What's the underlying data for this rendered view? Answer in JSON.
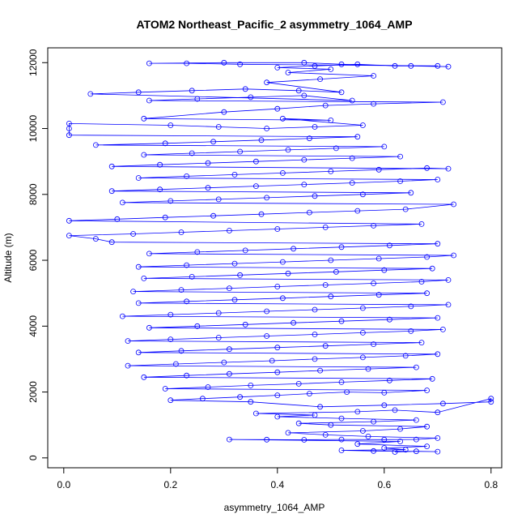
{
  "chart_data": {
    "type": "scatter",
    "title": "ATOM2 Northeast_Pacific_2 asymmetry_1064_AMP",
    "xlabel": "asymmetry_1064_AMP",
    "ylabel": "Altitude (m)",
    "xlim": [
      -0.03,
      0.82
    ],
    "ylim": [
      -300,
      12450
    ],
    "x_ticks": [
      {
        "value": 0.0,
        "label": "0.0"
      },
      {
        "value": 0.2,
        "label": "0.2"
      },
      {
        "value": 0.4,
        "label": "0.4"
      },
      {
        "value": 0.6,
        "label": "0.6"
      },
      {
        "value": 0.8,
        "label": "0.8"
      }
    ],
    "y_ticks": [
      {
        "value": 0,
        "label": "0"
      },
      {
        "value": 2000,
        "label": "2000"
      },
      {
        "value": 4000,
        "label": "4000"
      },
      {
        "value": 6000,
        "label": "6000"
      },
      {
        "value": 8000,
        "label": "8000"
      },
      {
        "value": 10000,
        "label": "10000"
      },
      {
        "value": 12000,
        "label": "12000"
      }
    ],
    "grid": false,
    "legend": "none",
    "series": [
      {
        "color": "#0000ff",
        "marker": "open-circle",
        "connected": true,
        "points": [
          [
            0.62,
            180
          ],
          [
            0.66,
            200
          ],
          [
            0.7,
            190
          ],
          [
            0.58,
            210
          ],
          [
            0.52,
            230
          ],
          [
            0.64,
            250
          ],
          [
            0.6,
            300
          ],
          [
            0.68,
            350
          ],
          [
            0.55,
            420
          ],
          [
            0.63,
            500
          ],
          [
            0.31,
            560
          ],
          [
            0.38,
            555
          ],
          [
            0.45,
            550
          ],
          [
            0.52,
            560
          ],
          [
            0.6,
            555
          ],
          [
            0.66,
            560
          ],
          [
            0.7,
            600
          ],
          [
            0.57,
            650
          ],
          [
            0.49,
            700
          ],
          [
            0.42,
            760
          ],
          [
            0.56,
            820
          ],
          [
            0.63,
            880
          ],
          [
            0.68,
            950
          ],
          [
            0.5,
            1000
          ],
          [
            0.44,
            1050
          ],
          [
            0.58,
            1100
          ],
          [
            0.66,
            1150
          ],
          [
            0.52,
            1200
          ],
          [
            0.4,
            1250
          ],
          [
            0.47,
            1300
          ],
          [
            0.36,
            1350
          ],
          [
            0.55,
            1400
          ],
          [
            0.62,
            1450
          ],
          [
            0.7,
            1380
          ],
          [
            0.8,
            1800
          ],
          [
            0.8,
            1700
          ],
          [
            0.71,
            1650
          ],
          [
            0.6,
            1600
          ],
          [
            0.48,
            1550
          ],
          [
            0.35,
            1700
          ],
          [
            0.2,
            1750
          ],
          [
            0.26,
            1800
          ],
          [
            0.33,
            1850
          ],
          [
            0.4,
            1900
          ],
          [
            0.46,
            1950
          ],
          [
            0.53,
            2000
          ],
          [
            0.6,
            1980
          ],
          [
            0.68,
            2050
          ],
          [
            0.19,
            2100
          ],
          [
            0.27,
            2150
          ],
          [
            0.35,
            2200
          ],
          [
            0.44,
            2250
          ],
          [
            0.52,
            2300
          ],
          [
            0.61,
            2350
          ],
          [
            0.69,
            2400
          ],
          [
            0.15,
            2450
          ],
          [
            0.23,
            2500
          ],
          [
            0.31,
            2550
          ],
          [
            0.4,
            2600
          ],
          [
            0.48,
            2650
          ],
          [
            0.57,
            2700
          ],
          [
            0.66,
            2750
          ],
          [
            0.12,
            2800
          ],
          [
            0.21,
            2850
          ],
          [
            0.3,
            2900
          ],
          [
            0.39,
            2950
          ],
          [
            0.47,
            3000
          ],
          [
            0.56,
            3050
          ],
          [
            0.64,
            3100
          ],
          [
            0.7,
            3150
          ],
          [
            0.14,
            3200
          ],
          [
            0.22,
            3250
          ],
          [
            0.31,
            3300
          ],
          [
            0.4,
            3350
          ],
          [
            0.49,
            3400
          ],
          [
            0.58,
            3450
          ],
          [
            0.67,
            3500
          ],
          [
            0.12,
            3550
          ],
          [
            0.2,
            3600
          ],
          [
            0.29,
            3650
          ],
          [
            0.38,
            3700
          ],
          [
            0.47,
            3750
          ],
          [
            0.56,
            3800
          ],
          [
            0.65,
            3850
          ],
          [
            0.71,
            3900
          ],
          [
            0.16,
            3950
          ],
          [
            0.25,
            4000
          ],
          [
            0.34,
            4050
          ],
          [
            0.43,
            4100
          ],
          [
            0.52,
            4150
          ],
          [
            0.61,
            4200
          ],
          [
            0.7,
            4250
          ],
          [
            0.11,
            4300
          ],
          [
            0.2,
            4350
          ],
          [
            0.29,
            4400
          ],
          [
            0.38,
            4450
          ],
          [
            0.47,
            4500
          ],
          [
            0.56,
            4550
          ],
          [
            0.65,
            4600
          ],
          [
            0.72,
            4650
          ],
          [
            0.14,
            4700
          ],
          [
            0.23,
            4750
          ],
          [
            0.32,
            4800
          ],
          [
            0.41,
            4850
          ],
          [
            0.5,
            4900
          ],
          [
            0.59,
            4950
          ],
          [
            0.68,
            5000
          ],
          [
            0.13,
            5050
          ],
          [
            0.22,
            5100
          ],
          [
            0.31,
            5150
          ],
          [
            0.4,
            5200
          ],
          [
            0.49,
            5250
          ],
          [
            0.58,
            5300
          ],
          [
            0.67,
            5350
          ],
          [
            0.72,
            5400
          ],
          [
            0.15,
            5450
          ],
          [
            0.24,
            5500
          ],
          [
            0.33,
            5550
          ],
          [
            0.42,
            5600
          ],
          [
            0.51,
            5650
          ],
          [
            0.6,
            5700
          ],
          [
            0.69,
            5750
          ],
          [
            0.14,
            5800
          ],
          [
            0.23,
            5850
          ],
          [
            0.32,
            5900
          ],
          [
            0.41,
            5950
          ],
          [
            0.5,
            6000
          ],
          [
            0.59,
            6050
          ],
          [
            0.68,
            6100
          ],
          [
            0.73,
            6150
          ],
          [
            0.16,
            6200
          ],
          [
            0.25,
            6250
          ],
          [
            0.34,
            6300
          ],
          [
            0.43,
            6350
          ],
          [
            0.52,
            6400
          ],
          [
            0.61,
            6450
          ],
          [
            0.7,
            6500
          ],
          [
            0.09,
            6550
          ],
          [
            0.06,
            6650
          ],
          [
            0.01,
            6750
          ],
          [
            0.13,
            6800
          ],
          [
            0.22,
            6850
          ],
          [
            0.31,
            6900
          ],
          [
            0.4,
            6950
          ],
          [
            0.49,
            7000
          ],
          [
            0.58,
            7050
          ],
          [
            0.67,
            7100
          ],
          [
            0.01,
            7200
          ],
          [
            0.1,
            7250
          ],
          [
            0.19,
            7300
          ],
          [
            0.28,
            7350
          ],
          [
            0.37,
            7400
          ],
          [
            0.46,
            7450
          ],
          [
            0.55,
            7500
          ],
          [
            0.64,
            7550
          ],
          [
            0.73,
            7700
          ],
          [
            0.11,
            7750
          ],
          [
            0.2,
            7800
          ],
          [
            0.29,
            7850
          ],
          [
            0.38,
            7900
          ],
          [
            0.47,
            7950
          ],
          [
            0.56,
            8000
          ],
          [
            0.65,
            8050
          ],
          [
            0.09,
            8100
          ],
          [
            0.18,
            8150
          ],
          [
            0.27,
            8200
          ],
          [
            0.36,
            8250
          ],
          [
            0.45,
            8300
          ],
          [
            0.54,
            8350
          ],
          [
            0.63,
            8400
          ],
          [
            0.7,
            8450
          ],
          [
            0.14,
            8500
          ],
          [
            0.23,
            8550
          ],
          [
            0.32,
            8600
          ],
          [
            0.41,
            8650
          ],
          [
            0.5,
            8700
          ],
          [
            0.59,
            8750
          ],
          [
            0.68,
            8800
          ],
          [
            0.72,
            8780
          ],
          [
            0.09,
            8850
          ],
          [
            0.18,
            8900
          ],
          [
            0.27,
            8950
          ],
          [
            0.36,
            9000
          ],
          [
            0.45,
            9050
          ],
          [
            0.54,
            9100
          ],
          [
            0.63,
            9150
          ],
          [
            0.15,
            9200
          ],
          [
            0.24,
            9250
          ],
          [
            0.33,
            9300
          ],
          [
            0.42,
            9350
          ],
          [
            0.51,
            9400
          ],
          [
            0.6,
            9450
          ],
          [
            0.06,
            9500
          ],
          [
            0.19,
            9550
          ],
          [
            0.28,
            9600
          ],
          [
            0.37,
            9650
          ],
          [
            0.46,
            9700
          ],
          [
            0.55,
            9750
          ],
          [
            0.01,
            9800
          ],
          [
            0.01,
            10000
          ],
          [
            0.01,
            10150
          ],
          [
            0.2,
            10100
          ],
          [
            0.29,
            10050
          ],
          [
            0.38,
            10000
          ],
          [
            0.47,
            10050
          ],
          [
            0.56,
            10100
          ],
          [
            0.41,
            10300
          ],
          [
            0.5,
            10250
          ],
          [
            0.15,
            10300
          ],
          [
            0.3,
            10500
          ],
          [
            0.4,
            10600
          ],
          [
            0.49,
            10700
          ],
          [
            0.58,
            10750
          ],
          [
            0.71,
            10800
          ],
          [
            0.16,
            10850
          ],
          [
            0.25,
            10900
          ],
          [
            0.35,
            10950
          ],
          [
            0.45,
            11000
          ],
          [
            0.54,
            10850
          ],
          [
            0.05,
            11050
          ],
          [
            0.14,
            11100
          ],
          [
            0.24,
            11150
          ],
          [
            0.34,
            11200
          ],
          [
            0.44,
            11150
          ],
          [
            0.52,
            11100
          ],
          [
            0.38,
            11400
          ],
          [
            0.48,
            11500
          ],
          [
            0.58,
            11600
          ],
          [
            0.42,
            11700
          ],
          [
            0.5,
            11800
          ],
          [
            0.4,
            11850
          ],
          [
            0.47,
            11900
          ],
          [
            0.55,
            11950
          ],
          [
            0.62,
            11900
          ],
          [
            0.7,
            11900
          ],
          [
            0.33,
            11950
          ],
          [
            0.23,
            11980
          ],
          [
            0.16,
            11980
          ],
          [
            0.3,
            12000
          ],
          [
            0.45,
            12000
          ],
          [
            0.52,
            11950
          ],
          [
            0.65,
            11900
          ],
          [
            0.72,
            11880
          ]
        ]
      }
    ]
  }
}
